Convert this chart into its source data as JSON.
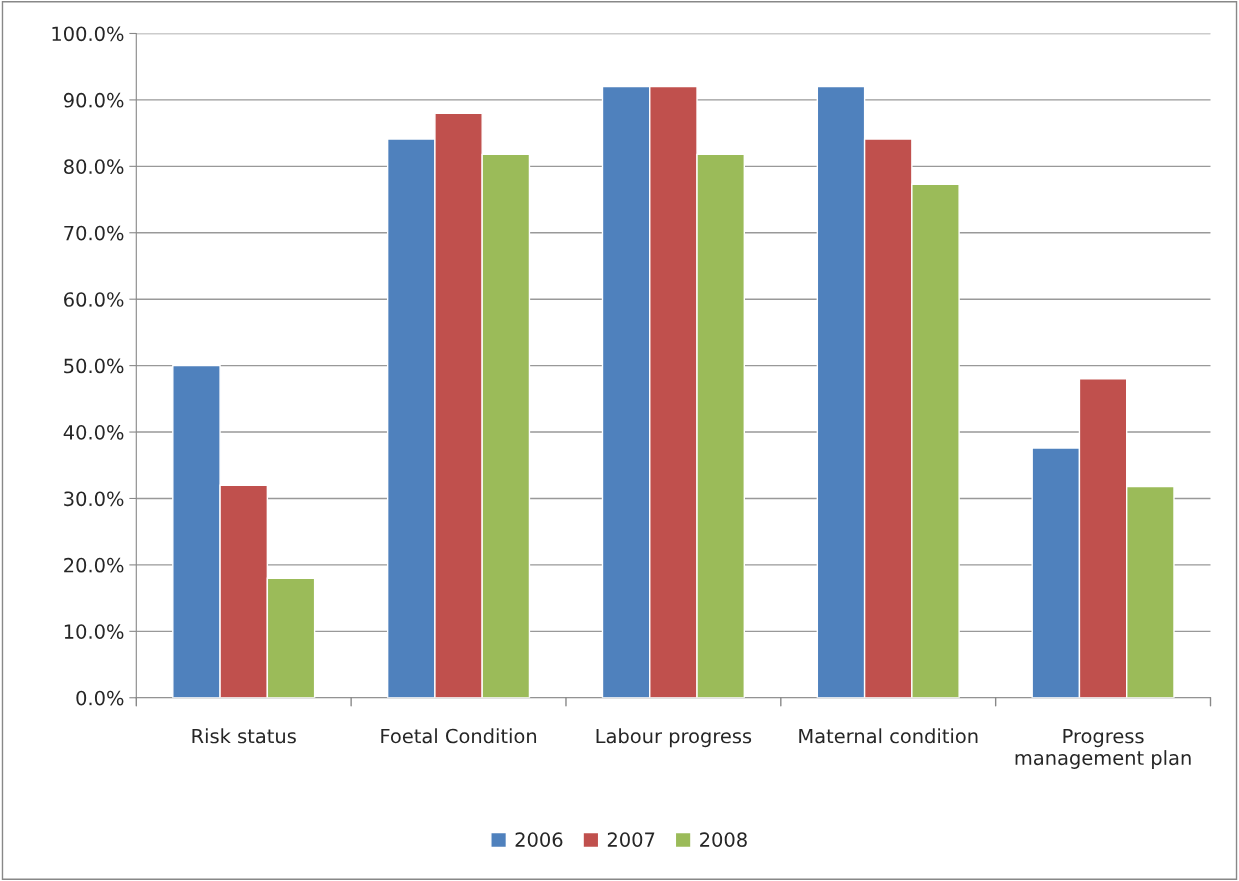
{
  "chart_data": {
    "type": "bar",
    "categories": [
      "Risk status",
      "Foetal Condition",
      "Labour progress",
      "Maternal condition",
      "Progress\nmanagement plan"
    ],
    "series": [
      {
        "name": "2006",
        "color": "#4f81bd",
        "values": [
          50,
          84.1,
          92,
          92,
          37.6
        ]
      },
      {
        "name": "2007",
        "color": "#c0504d",
        "values": [
          32,
          88,
          92,
          84.1,
          48
        ]
      },
      {
        "name": "2008",
        "color": "#9bbb59",
        "values": [
          18,
          81.8,
          81.8,
          77.3,
          31.8
        ]
      }
    ],
    "ylim": [
      0,
      100
    ],
    "yticks": [
      {
        "value": 0,
        "label": "0.0%"
      },
      {
        "value": 10,
        "label": "10.0%"
      },
      {
        "value": 20,
        "label": "20.0%"
      },
      {
        "value": 30,
        "label": "30.0%"
      },
      {
        "value": 40,
        "label": "40.0%"
      },
      {
        "value": 50,
        "label": "50.0%"
      },
      {
        "value": 60,
        "label": "60.0%"
      },
      {
        "value": 70,
        "label": "70.0%"
      },
      {
        "value": 80,
        "label": "80.0%"
      },
      {
        "value": 90,
        "label": "90.0%"
      },
      {
        "value": 100,
        "label": "100.0%"
      }
    ],
    "grid": "y",
    "legend": "bottom"
  }
}
